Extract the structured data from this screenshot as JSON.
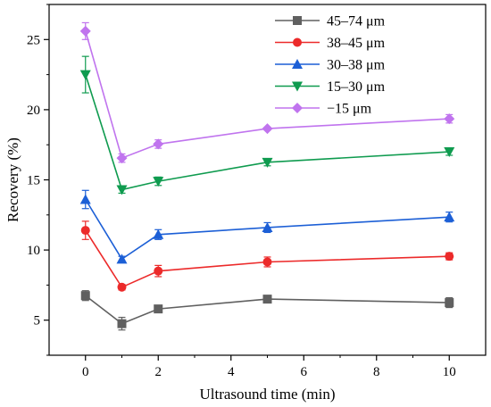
{
  "chart_data": {
    "type": "line",
    "title": "",
    "xlabel": "Ultrasound time (min)",
    "ylabel": "Recovery (%)",
    "xlim": [
      -1,
      11
    ],
    "ylim": [
      2.5,
      27.5
    ],
    "xticks": [
      0,
      2,
      4,
      6,
      8,
      10
    ],
    "yticks": [
      5,
      10,
      15,
      20,
      25
    ],
    "grid": false,
    "legend_position": "top-right",
    "x": [
      0,
      1,
      2,
      5,
      10
    ],
    "series": [
      {
        "name": "45–74 μm",
        "color": "#606060",
        "marker": "square",
        "values": [
          6.75,
          4.75,
          5.8,
          6.5,
          6.25
        ],
        "errors": [
          0.35,
          0.45,
          0.2,
          0.15,
          0.35
        ]
      },
      {
        "name": "38–45 μm",
        "color": "#ec2a2a",
        "marker": "circle",
        "values": [
          11.4,
          7.35,
          8.5,
          9.15,
          9.55
        ],
        "errors": [
          0.65,
          0.2,
          0.4,
          0.35,
          0.25
        ]
      },
      {
        "name": "30–38 μm",
        "color": "#1c5fd6",
        "marker": "triangle-up",
        "values": [
          13.6,
          9.35,
          11.1,
          11.6,
          12.35
        ],
        "errors": [
          0.65,
          0.2,
          0.35,
          0.35,
          0.35
        ]
      },
      {
        "name": "15–30 μm",
        "color": "#0f9b4f",
        "marker": "triangle-down",
        "values": [
          22.5,
          14.3,
          14.9,
          16.25,
          17.0
        ],
        "errors": [
          1.3,
          0.25,
          0.3,
          0.25,
          0.25
        ]
      },
      {
        "name": "−15 μm",
        "color": "#c074ee",
        "marker": "diamond",
        "values": [
          25.6,
          16.55,
          17.55,
          18.65,
          19.35
        ],
        "errors": [
          0.6,
          0.3,
          0.3,
          0.1,
          0.3
        ]
      }
    ]
  }
}
